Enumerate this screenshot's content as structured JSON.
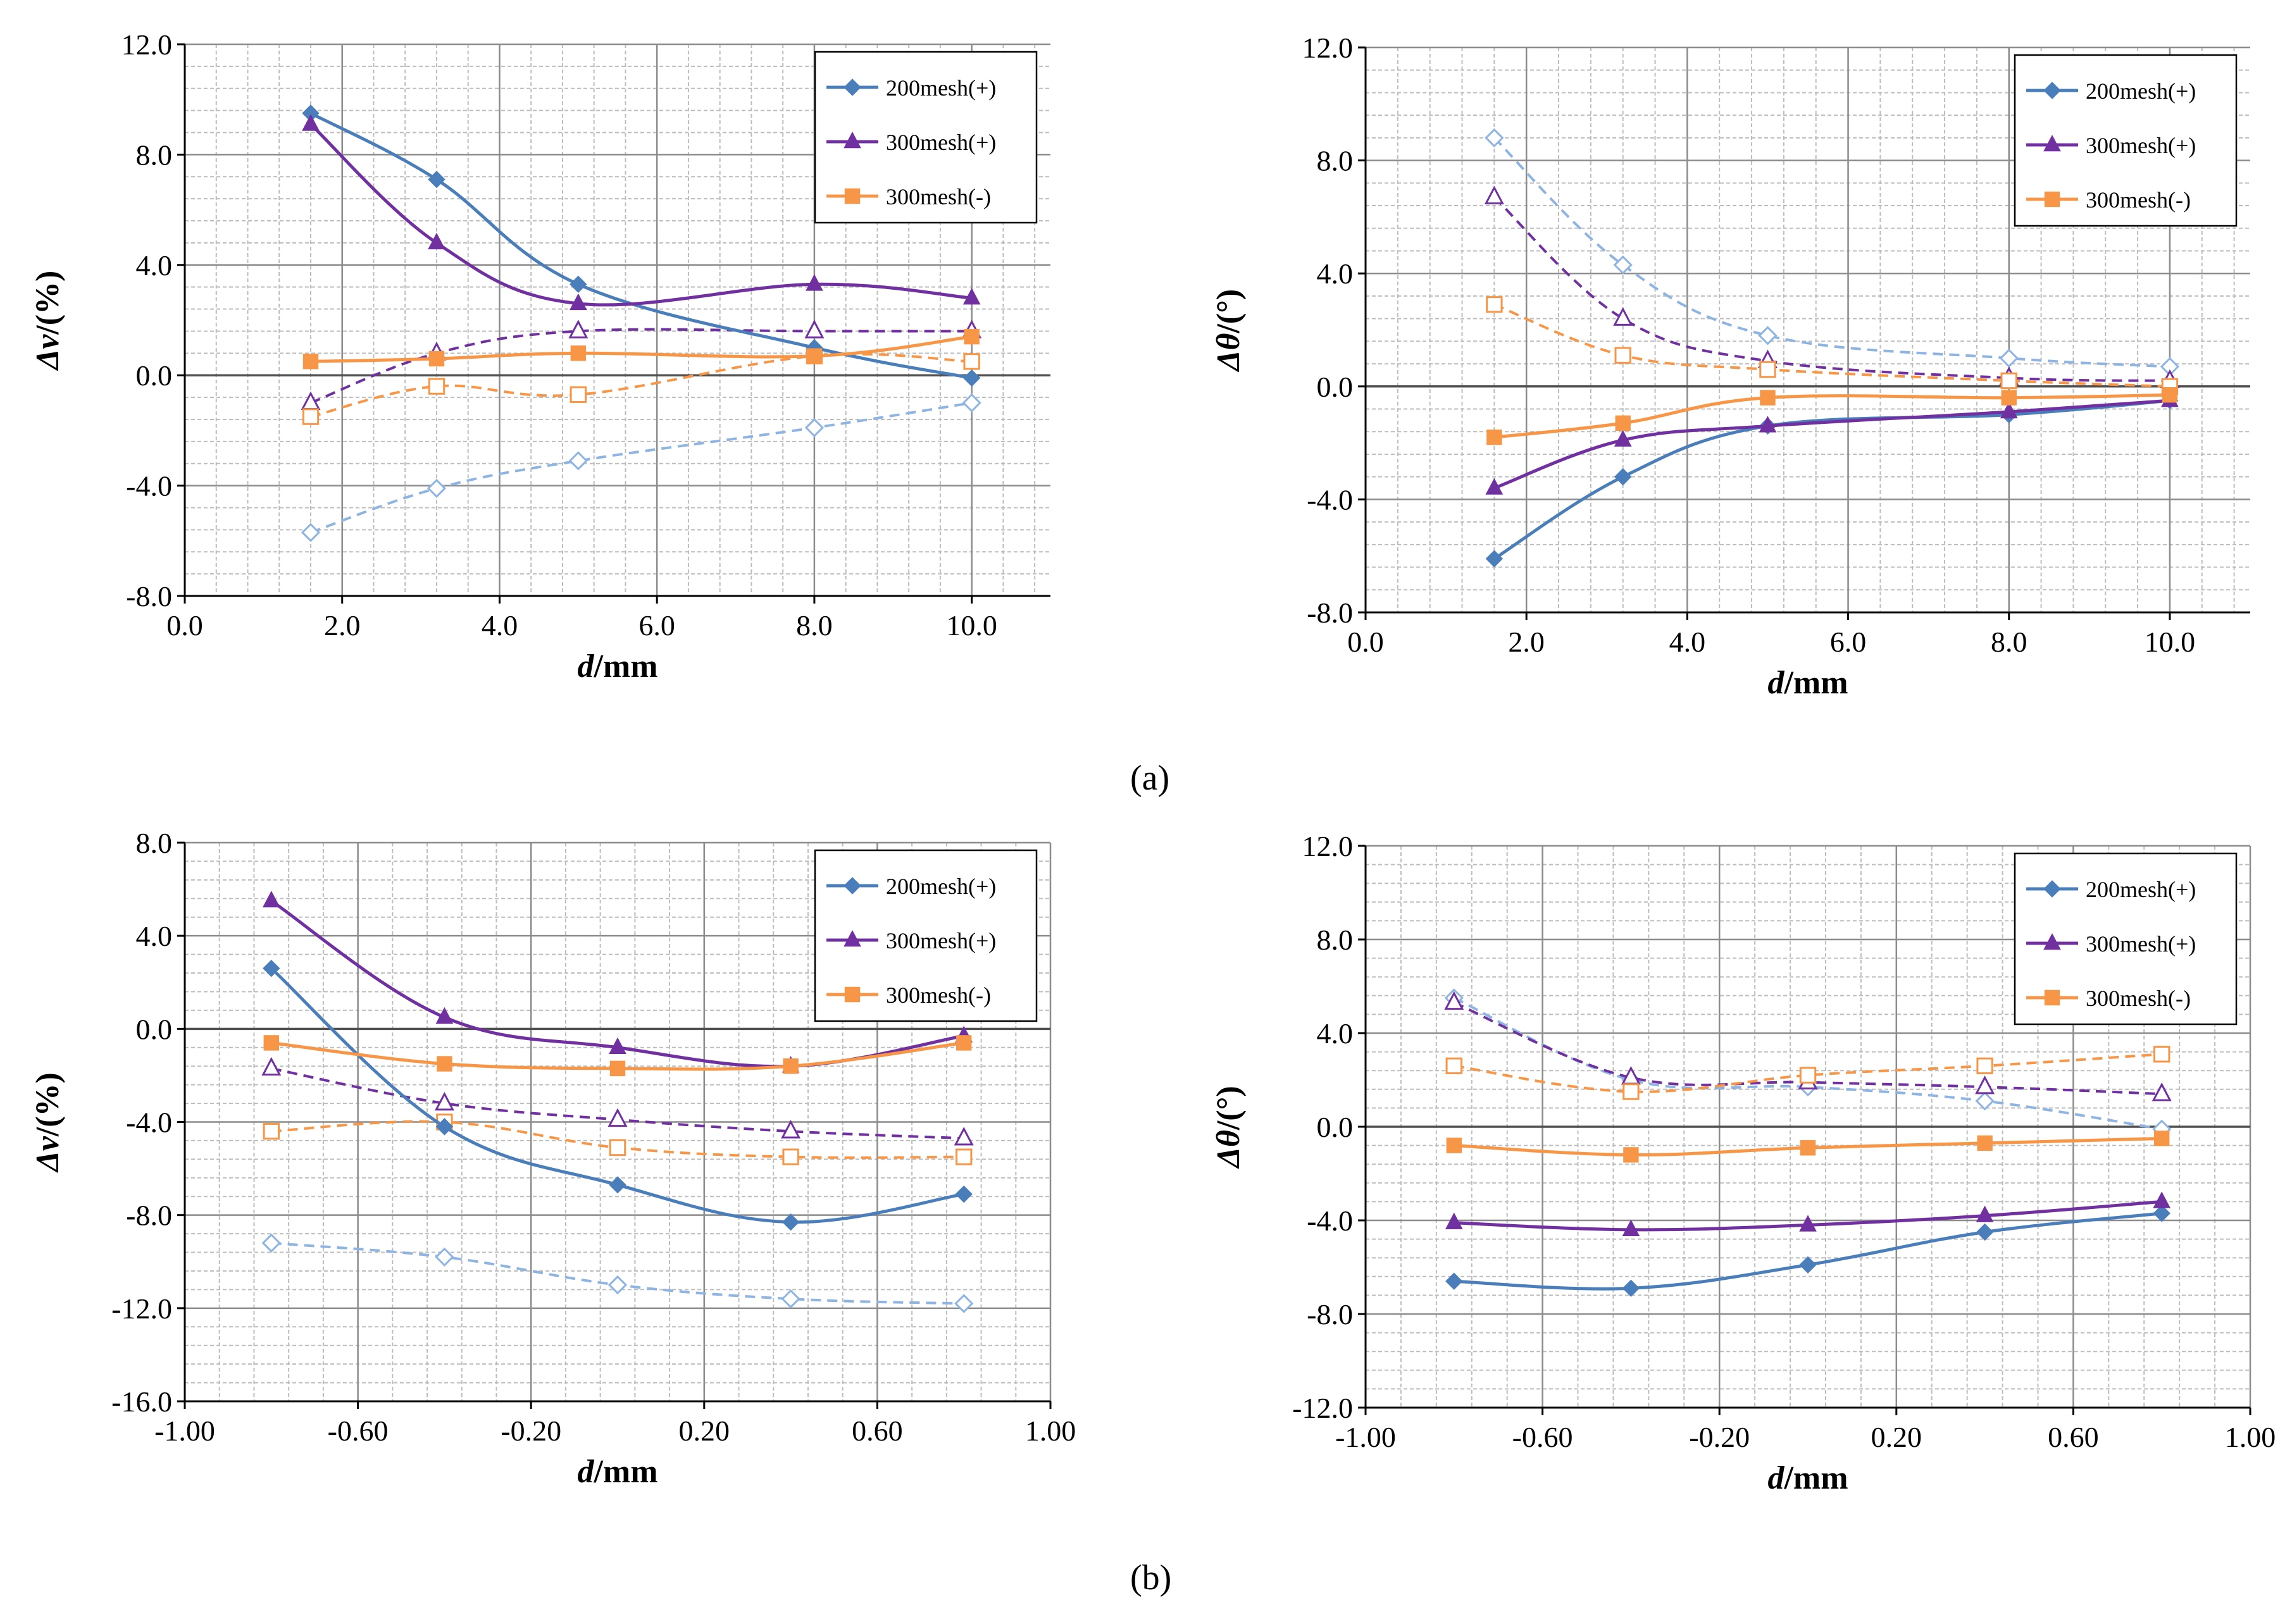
{
  "figure": {
    "panel_labels": [
      "(a)",
      "(b)"
    ]
  },
  "colors": {
    "blue": "#4A7EBB",
    "purple": "#7030A0",
    "orange": "#F79646",
    "light_blue": "#8DB4E2"
  },
  "chart_data": [
    {
      "type": "line",
      "panel": "a",
      "xlabel_italic": "d",
      "xlabel_rest": "/mm",
      "ylabel_italic": "Δv",
      "ylabel_rest": "/(%)",
      "xlim": [
        0,
        11
      ],
      "ylim": [
        -8,
        12
      ],
      "xticks": [
        0,
        2,
        4,
        6,
        8,
        10
      ],
      "xtick_labels": [
        "0.0",
        "2.0",
        "4.0",
        "6.0",
        "8.0",
        "10.0"
      ],
      "yticks": [
        -8,
        -4,
        0,
        4,
        8,
        12
      ],
      "ytick_labels": [
        "-8.0",
        "-4.0",
        "0.0",
        "4.0",
        "8.0",
        "12.0"
      ],
      "x": [
        1.6,
        3.2,
        5.0,
        8.0,
        10.0
      ],
      "grid": true,
      "legend_position": "top-right",
      "series": [
        {
          "name": "200mesh(+)",
          "color": "blue",
          "marker": "diamond",
          "style": "solid",
          "values": [
            9.5,
            7.1,
            3.3,
            1.0,
            -0.1
          ]
        },
        {
          "name": "300mesh(+)",
          "color": "purple",
          "marker": "triangle",
          "style": "solid",
          "values": [
            9.1,
            4.8,
            2.6,
            3.3,
            2.8
          ]
        },
        {
          "name": "300mesh(-)",
          "color": "orange",
          "marker": "square",
          "style": "solid",
          "values": [
            0.5,
            0.6,
            0.8,
            0.7,
            1.4
          ]
        },
        {
          "color": "light_blue",
          "marker": "diamond-open",
          "style": "dashed",
          "values": [
            -5.7,
            -4.1,
            -3.1,
            -1.9,
            -1.0
          ]
        },
        {
          "color": "purple",
          "marker": "triangle-open",
          "style": "dashed",
          "values": [
            -1.0,
            0.8,
            1.6,
            1.6,
            1.6
          ]
        },
        {
          "color": "orange",
          "marker": "square-open",
          "style": "dashed",
          "values": [
            -1.5,
            -0.4,
            -0.7,
            0.7,
            0.5
          ]
        }
      ]
    },
    {
      "type": "line",
      "panel": "a",
      "xlabel_italic": "d",
      "xlabel_rest": "/mm",
      "ylabel_italic": "Δθ",
      "ylabel_rest": "/(°)",
      "xlim": [
        0,
        11
      ],
      "ylim": [
        -8,
        12
      ],
      "xticks": [
        0,
        2,
        4,
        6,
        8,
        10
      ],
      "xtick_labels": [
        "0.0",
        "2.0",
        "4.0",
        "6.0",
        "8.0",
        "10.0"
      ],
      "yticks": [
        -8,
        -4,
        0,
        4,
        8,
        12
      ],
      "ytick_labels": [
        "-8.0",
        "-4.0",
        "0.0",
        "4.0",
        "8.0",
        "12.0"
      ],
      "x": [
        1.6,
        3.2,
        5.0,
        8.0,
        10.0
      ],
      "grid": true,
      "legend_position": "top-right",
      "series": [
        {
          "name": "200mesh(+)",
          "color": "blue",
          "marker": "diamond",
          "style": "solid",
          "values": [
            -6.1,
            -3.2,
            -1.4,
            -1.0,
            -0.5
          ]
        },
        {
          "name": "300mesh(+)",
          "color": "purple",
          "marker": "triangle",
          "style": "solid",
          "values": [
            -3.6,
            -1.9,
            -1.4,
            -0.9,
            -0.5
          ]
        },
        {
          "name": "300mesh(-)",
          "color": "orange",
          "marker": "square",
          "style": "solid",
          "values": [
            -1.8,
            -1.3,
            -0.4,
            -0.4,
            -0.3
          ]
        },
        {
          "color": "light_blue",
          "marker": "diamond-open",
          "style": "dashed",
          "values": [
            8.8,
            4.3,
            1.8,
            1.0,
            0.7
          ]
        },
        {
          "color": "purple",
          "marker": "triangle-open",
          "style": "dashed",
          "values": [
            6.7,
            2.4,
            0.9,
            0.3,
            0.2
          ]
        },
        {
          "color": "orange",
          "marker": "square-open",
          "style": "dashed",
          "values": [
            2.9,
            1.1,
            0.6,
            0.2,
            0.0
          ]
        }
      ]
    },
    {
      "type": "line",
      "panel": "b",
      "xlabel_italic": "d",
      "xlabel_rest": "/mm",
      "ylabel_italic": "Δv",
      "ylabel_rest": "/(%)",
      "xlim": [
        -1,
        1
      ],
      "ylim": [
        -16,
        8
      ],
      "xticks": [
        -1,
        -0.6,
        -0.2,
        0.2,
        0.6,
        1
      ],
      "xtick_labels": [
        "-1.00",
        "-0.60",
        "-0.20",
        "0.20",
        "0.60",
        "1.00"
      ],
      "yticks": [
        -16,
        -12,
        -8,
        -4,
        0,
        4,
        8
      ],
      "ytick_labels": [
        "-16.0",
        "-12.0",
        "-8.0",
        "-4.0",
        "0.0",
        "4.0",
        "8.0"
      ],
      "x": [
        -0.8,
        -0.4,
        0.0,
        0.4,
        0.8
      ],
      "grid": true,
      "legend_position": "top-right",
      "series": [
        {
          "name": "200mesh(+)",
          "color": "blue",
          "marker": "diamond",
          "style": "solid",
          "values": [
            2.6,
            -4.2,
            -6.7,
            -8.3,
            -7.1
          ]
        },
        {
          "name": "300mesh(+)",
          "color": "purple",
          "marker": "triangle",
          "style": "solid",
          "values": [
            5.5,
            0.5,
            -0.8,
            -1.6,
            -0.3
          ]
        },
        {
          "name": "300mesh(-)",
          "color": "orange",
          "marker": "square",
          "style": "solid",
          "values": [
            -0.6,
            -1.5,
            -1.7,
            -1.6,
            -0.6
          ]
        },
        {
          "color": "light_blue",
          "marker": "diamond-open",
          "style": "dashed",
          "values": [
            -9.2,
            -9.8,
            -11.0,
            -11.6,
            -11.8
          ]
        },
        {
          "color": "purple",
          "marker": "triangle-open",
          "style": "dashed",
          "values": [
            -1.7,
            -3.2,
            -3.9,
            -4.4,
            -4.7
          ]
        },
        {
          "color": "orange",
          "marker": "square-open",
          "style": "dashed",
          "values": [
            -4.4,
            -4.0,
            -5.1,
            -5.5,
            -5.5
          ]
        }
      ]
    },
    {
      "type": "line",
      "panel": "b",
      "xlabel_italic": "d",
      "xlabel_rest": "/mm",
      "ylabel_italic": "Δθ",
      "ylabel_rest": "/(°)",
      "xlim": [
        -1,
        1
      ],
      "ylim": [
        -12,
        12
      ],
      "xticks": [
        -1,
        -0.6,
        -0.2,
        0.2,
        0.6,
        1
      ],
      "xtick_labels": [
        "-1.00",
        "-0.60",
        "-0.20",
        "0.20",
        "0.60",
        "1.00"
      ],
      "yticks": [
        -12,
        -8,
        -4,
        0,
        4,
        8,
        12
      ],
      "ytick_labels": [
        "-12.0",
        "-8.0",
        "-4.0",
        "0.0",
        "4.0",
        "8.0",
        "12.0"
      ],
      "x": [
        -0.8,
        -0.4,
        0.0,
        0.4,
        0.8
      ],
      "grid": true,
      "legend_position": "top-right",
      "series": [
        {
          "name": "200mesh(+)",
          "color": "blue",
          "marker": "diamond",
          "style": "solid",
          "values": [
            -6.6,
            -6.9,
            -5.9,
            -4.5,
            -3.7
          ]
        },
        {
          "name": "300mesh(+)",
          "color": "purple",
          "marker": "triangle",
          "style": "solid",
          "values": [
            -4.1,
            -4.4,
            -4.2,
            -3.8,
            -3.2
          ]
        },
        {
          "name": "300mesh(-)",
          "color": "orange",
          "marker": "square",
          "style": "solid",
          "values": [
            -0.8,
            -1.2,
            -0.9,
            -0.7,
            -0.5
          ]
        },
        {
          "color": "light_blue",
          "marker": "diamond-open",
          "style": "dashed",
          "values": [
            5.5,
            2.0,
            1.7,
            1.1,
            -0.1
          ]
        },
        {
          "color": "purple",
          "marker": "triangle-open",
          "style": "dashed",
          "values": [
            5.3,
            2.1,
            1.9,
            1.7,
            1.4
          ]
        },
        {
          "color": "orange",
          "marker": "square-open",
          "style": "dashed",
          "values": [
            2.6,
            1.5,
            2.2,
            2.6,
            3.1
          ]
        }
      ]
    }
  ]
}
